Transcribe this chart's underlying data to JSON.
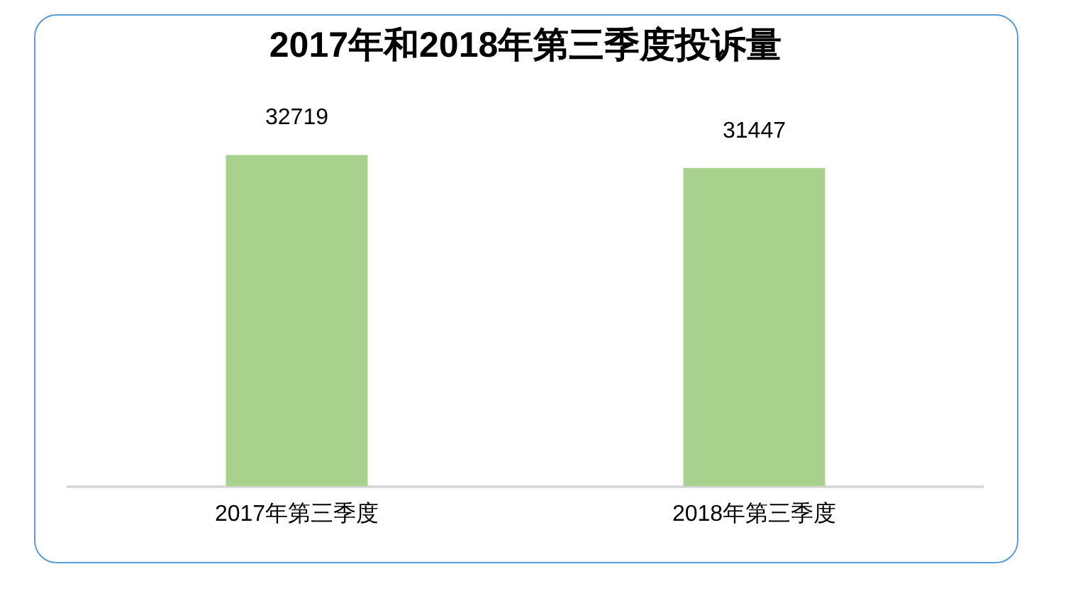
{
  "chart_data": {
    "type": "bar",
    "title": "2017年和2018年第三季度投诉量",
    "categories": [
      "2017年第三季度",
      "2018年第三季度"
    ],
    "values": [
      32719,
      31447
    ],
    "color": "#a9d18e",
    "tick_labels": "x",
    "grid": false,
    "legend": false,
    "data_labels": true
  }
}
